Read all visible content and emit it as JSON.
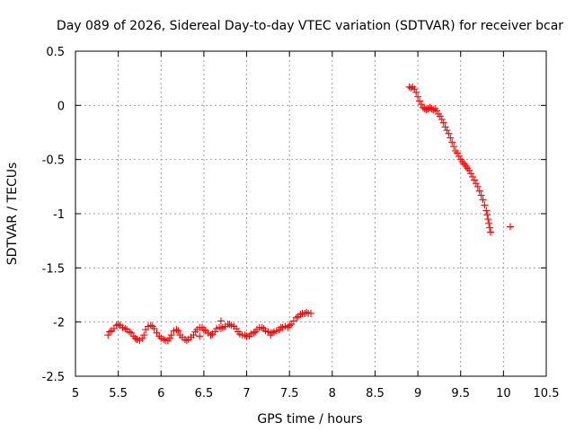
{
  "chart_data": {
    "type": "scatter",
    "title": "Day 089 of 2026, Sidereal Day-to-day VTEC variation (SDTVAR) for receiver bcar",
    "xlabel": "GPS time / hours",
    "ylabel": "SDTVAR / TECUs",
    "xlim": [
      5,
      10.5
    ],
    "ylim": [
      -2.5,
      0.5
    ],
    "xticks": [
      "5",
      "5.5",
      "6",
      "6.5",
      "7",
      "7.5",
      "8",
      "8.5",
      "9",
      "9.5",
      "10",
      "10.5"
    ],
    "yticks": [
      "0.5",
      "0",
      "-0.5",
      "-1",
      "-1.5",
      "-2",
      "-2.5"
    ],
    "grid": true,
    "marker": "+",
    "series_color": "#ff0000",
    "series": [
      {
        "name": "SDTVAR",
        "x": [
          5.38,
          5.4,
          5.42,
          5.45,
          5.48,
          5.5,
          5.52,
          5.55,
          5.58,
          5.6,
          5.63,
          5.65,
          5.68,
          5.7,
          5.72,
          5.75,
          5.78,
          5.8,
          5.82,
          5.85,
          5.88,
          5.9,
          5.92,
          5.95,
          5.98,
          6.0,
          6.03,
          6.05,
          6.08,
          6.1,
          6.12,
          6.15,
          6.18,
          6.2,
          6.22,
          6.25,
          6.28,
          6.3,
          6.32,
          6.35,
          6.38,
          6.4,
          6.42,
          6.45,
          6.48,
          6.5,
          6.52,
          6.55,
          6.58,
          6.6,
          6.63,
          6.65,
          6.68,
          6.7,
          6.72,
          6.75,
          6.78,
          6.8,
          6.82,
          6.85,
          6.88,
          6.9,
          6.92,
          6.95,
          6.98,
          7.0,
          7.03,
          7.05,
          7.08,
          7.1,
          7.12,
          7.15,
          7.18,
          7.2,
          7.22,
          7.25,
          7.28,
          7.3,
          7.32,
          7.35,
          7.38,
          7.4,
          7.42,
          7.45,
          7.48,
          7.5,
          7.52,
          7.55,
          7.58,
          7.6,
          7.63,
          7.65,
          7.68,
          7.7,
          7.72,
          7.75,
          6.7,
          6.45,
          7.28,
          8.9,
          8.92,
          8.94,
          8.96,
          8.98,
          9.0,
          9.02,
          9.04,
          9.06,
          9.08,
          9.1,
          9.12,
          9.14,
          9.16,
          9.18,
          9.2,
          9.22,
          9.24,
          9.26,
          9.28,
          9.3,
          9.32,
          9.34,
          9.36,
          9.38,
          9.4,
          9.42,
          9.44,
          9.46,
          9.48,
          9.5,
          9.52,
          9.54,
          9.56,
          9.58,
          9.6,
          9.62,
          9.64,
          9.66,
          9.68,
          9.7,
          9.72,
          9.74,
          9.76,
          9.78,
          9.8,
          9.81,
          9.82,
          9.83,
          9.84,
          9.85,
          10.08
        ],
        "y": [
          -2.12,
          -2.09,
          -2.08,
          -2.06,
          -2.03,
          -2.02,
          -2.03,
          -2.05,
          -2.06,
          -2.07,
          -2.09,
          -2.1,
          -2.13,
          -2.15,
          -2.16,
          -2.17,
          -2.15,
          -2.12,
          -2.07,
          -2.04,
          -2.03,
          -2.04,
          -2.06,
          -2.1,
          -2.13,
          -2.15,
          -2.16,
          -2.17,
          -2.17,
          -2.15,
          -2.12,
          -2.08,
          -2.07,
          -2.08,
          -2.12,
          -2.14,
          -2.16,
          -2.17,
          -2.16,
          -2.14,
          -2.12,
          -2.09,
          -2.07,
          -2.05,
          -2.05,
          -2.07,
          -2.08,
          -2.1,
          -2.12,
          -2.11,
          -2.09,
          -2.06,
          -2.05,
          -2.06,
          -2.05,
          -2.04,
          -2.02,
          -2.02,
          -2.03,
          -2.04,
          -2.06,
          -2.09,
          -2.11,
          -2.12,
          -2.12,
          -2.13,
          -2.13,
          -2.11,
          -2.1,
          -2.09,
          -2.07,
          -2.05,
          -2.05,
          -2.06,
          -2.08,
          -2.09,
          -2.1,
          -2.1,
          -2.09,
          -2.08,
          -2.07,
          -2.05,
          -2.05,
          -2.04,
          -2.05,
          -2.03,
          -2.02,
          -1.99,
          -1.96,
          -1.95,
          -1.93,
          -1.92,
          -1.92,
          -1.91,
          -1.92,
          -1.92,
          -1.99,
          -2.13,
          -2.12,
          0.17,
          0.16,
          0.17,
          0.15,
          0.12,
          0.08,
          0.04,
          0.01,
          -0.02,
          -0.03,
          -0.04,
          -0.03,
          -0.02,
          -0.03,
          -0.04,
          -0.03,
          -0.05,
          -0.08,
          -0.1,
          -0.13,
          -0.16,
          -0.2,
          -0.23,
          -0.26,
          -0.3,
          -0.34,
          -0.38,
          -0.42,
          -0.44,
          -0.47,
          -0.5,
          -0.52,
          -0.54,
          -0.56,
          -0.58,
          -0.6,
          -0.63,
          -0.66,
          -0.69,
          -0.72,
          -0.75,
          -0.79,
          -0.83,
          -0.87,
          -0.92,
          -0.97,
          -1.01,
          -1.05,
          -1.09,
          -1.13,
          -1.17,
          -1.12
        ]
      }
    ]
  }
}
